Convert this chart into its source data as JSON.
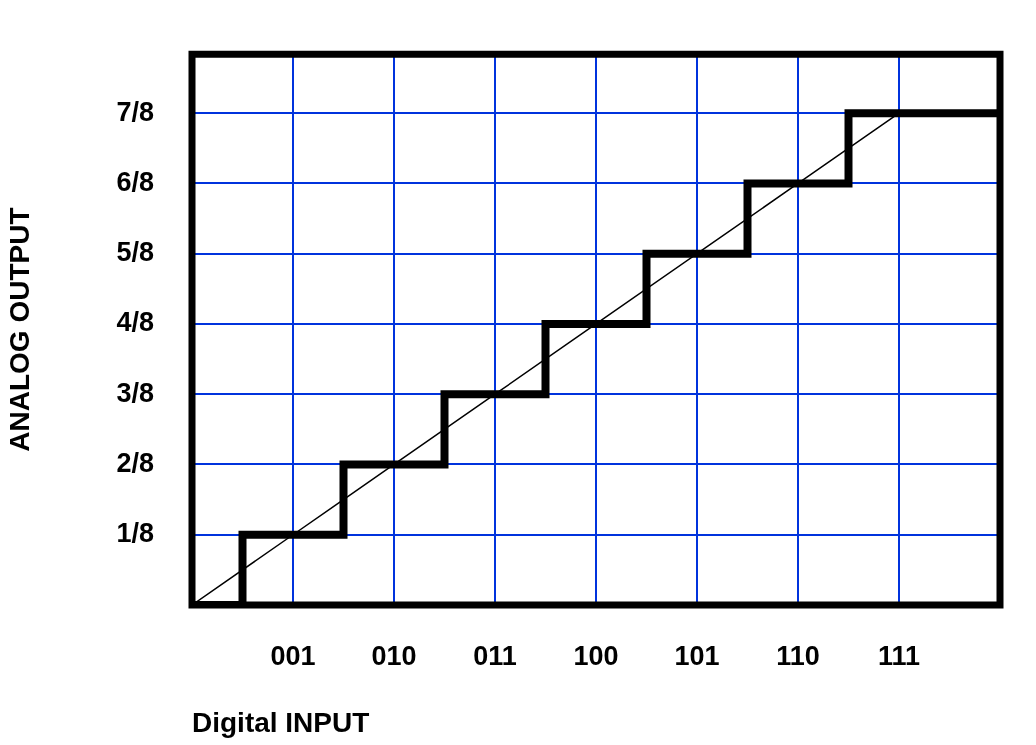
{
  "chart_data": {
    "type": "line",
    "xlabel": "Digital INPUT",
    "ylabel": "ANALOG OUTPUT",
    "categories": [
      null,
      "001",
      "010",
      "011",
      "100",
      "101",
      "110",
      "111",
      null
    ],
    "ylim": [
      0,
      0.98
    ],
    "yticks": [
      {
        "value": 0.125,
        "label": "1/8"
      },
      {
        "value": 0.25,
        "label": "2/8"
      },
      {
        "value": 0.375,
        "label": "3/8"
      },
      {
        "value": 0.5,
        "label": "4/8"
      },
      {
        "value": 0.625,
        "label": "5/8"
      },
      {
        "value": 0.75,
        "label": "6/8"
      },
      {
        "value": 0.875,
        "label": "7/8"
      }
    ],
    "grid": true,
    "marker": "none",
    "line_style": "solid",
    "series": [
      {
        "type": "step",
        "color": "#000000",
        "values": [
          0,
          0.125,
          0.25,
          0.375,
          0.5,
          0.625,
          0.75,
          0.875,
          0.875
        ]
      },
      {
        "type": "line",
        "color": "#000000",
        "values": [
          0,
          0.125,
          0.25,
          0.375,
          0.5,
          0.625,
          0.75,
          0.875,
          null
        ]
      }
    ]
  }
}
